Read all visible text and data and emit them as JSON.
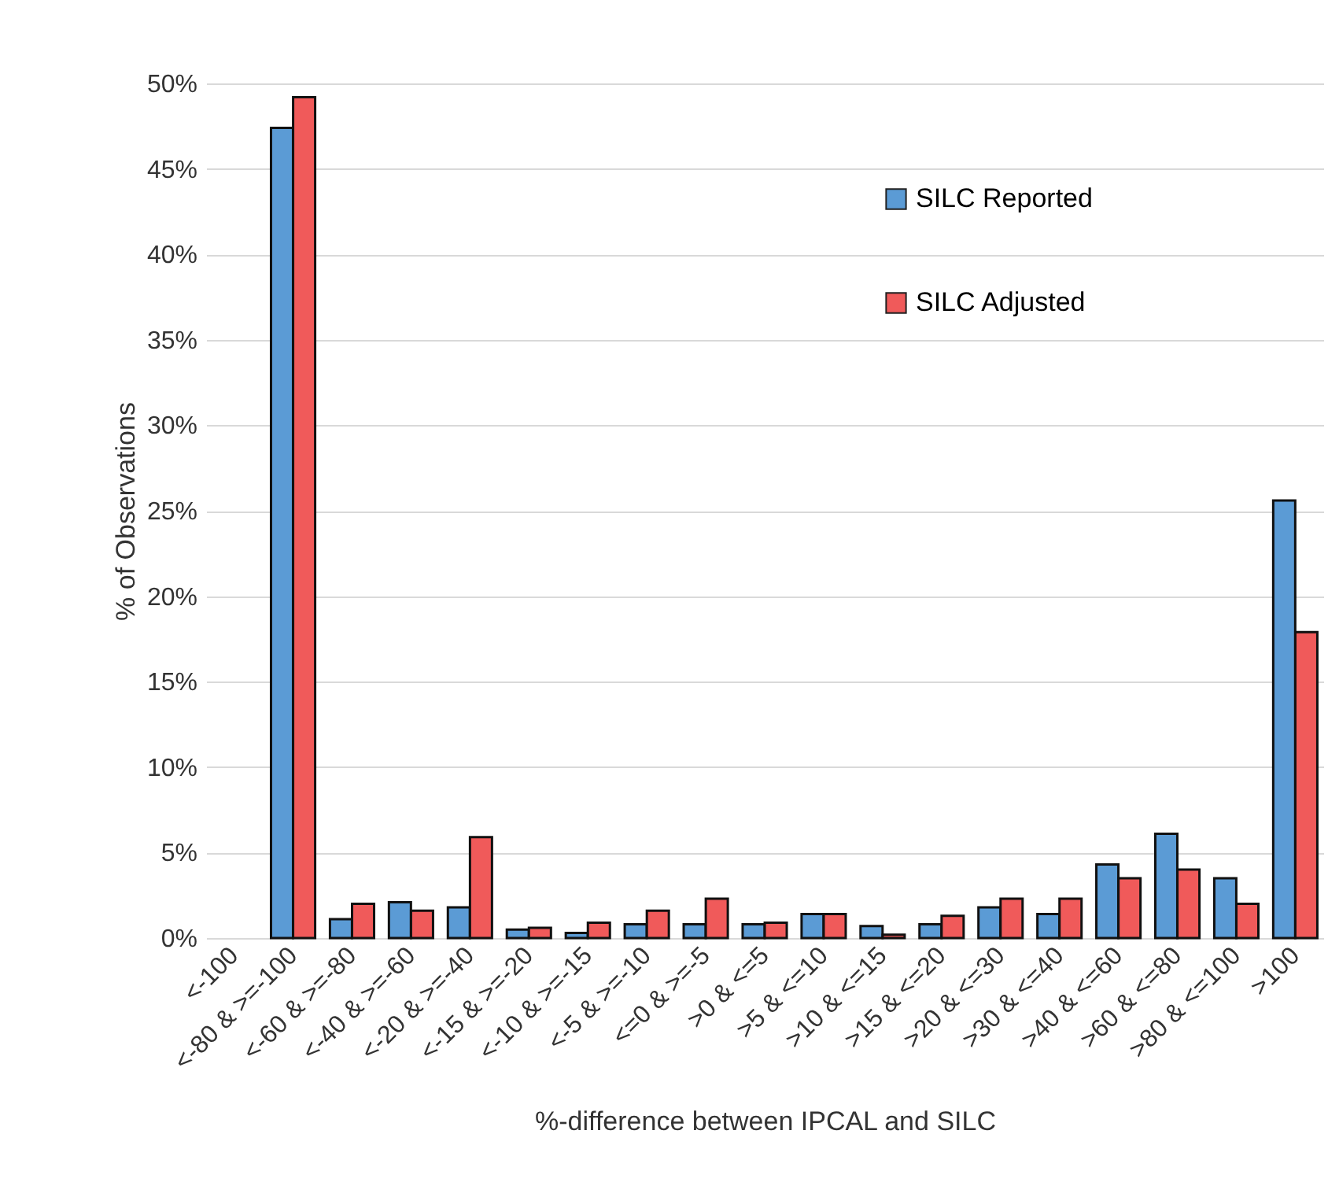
{
  "chart_data": {
    "type": "bar",
    "xlabel": "%-difference between IPCAL and SILC",
    "ylabel": "% of Observations",
    "categories": [
      "<-100",
      "<-80 & >=-100",
      "<-60 & >=-80",
      "<-40 & >=-60",
      "<-20 & >=-40",
      "<-15 & >=-20",
      "<-10 & >=-15",
      "<-5 & >=-10",
      "<=0 & >=-5",
      ">0 & <=5",
      ">5 & <=10",
      ">10 & <=15",
      ">15 & <=20",
      ">20 & <=30",
      ">30 & <=40",
      ">40 & <=60",
      ">60 & <=80",
      ">80 & <=100",
      ">100"
    ],
    "series": [
      {
        "name": "SILC Reported",
        "color": "#5b9bd5",
        "values": [
          null,
          47.4,
          1.1,
          2.1,
          1.8,
          0.5,
          0.3,
          0.8,
          0.8,
          0.8,
          1.4,
          0.7,
          0.8,
          1.8,
          1.4,
          4.3,
          6.1,
          3.5,
          25.6
        ]
      },
      {
        "name": "SILC Adjusted",
        "color": "#f05a5a",
        "values": [
          null,
          49.2,
          2.0,
          1.6,
          5.9,
          0.6,
          0.9,
          1.6,
          2.3,
          0.9,
          1.4,
          0.2,
          1.3,
          2.3,
          2.3,
          3.5,
          4.0,
          2.0,
          17.9
        ]
      }
    ],
    "ylim": [
      0,
      50
    ],
    "yticks": [
      {
        "value": 0,
        "label": "0%"
      },
      {
        "value": 5,
        "label": "5%"
      },
      {
        "value": 10,
        "label": "10%"
      },
      {
        "value": 15,
        "label": "15%"
      },
      {
        "value": 20,
        "label": "20%"
      },
      {
        "value": 25,
        "label": "25%"
      },
      {
        "value": 30,
        "label": "30%"
      },
      {
        "value": 35,
        "label": "35%"
      },
      {
        "value": 40,
        "label": "40%"
      },
      {
        "value": 45,
        "label": "45%"
      },
      {
        "value": 50,
        "label": "50%"
      }
    ],
    "grid": "y",
    "legend": "top right"
  }
}
